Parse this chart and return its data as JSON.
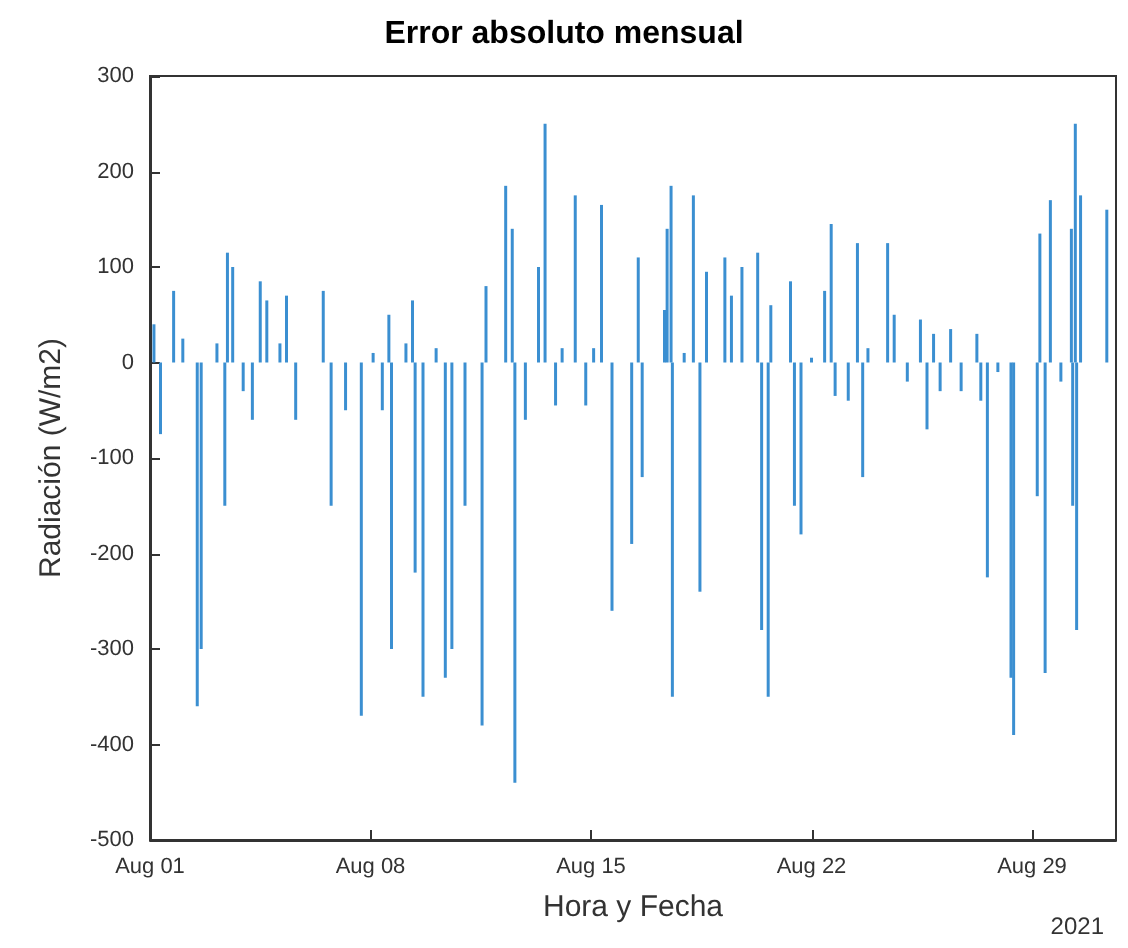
{
  "chart_data": {
    "type": "bar",
    "title": "Error absoluto mensual",
    "xlabel": "Hora y Fecha",
    "ylabel": "Radiación (W/m2)",
    "annotations": [
      "2021"
    ],
    "color": "#3b8fd1",
    "x": [
      "2021-08-01T03:00",
      "2021-08-01T08:00",
      "2021-08-01T18:00",
      "2021-08-02T01:00",
      "2021-08-02T12:00",
      "2021-08-02T15:00",
      "2021-08-03T03:00",
      "2021-08-03T09:00",
      "2021-08-03T11:00",
      "2021-08-03T15:00",
      "2021-08-03T23:00",
      "2021-08-04T06:00",
      "2021-08-04T12:00",
      "2021-08-04T17:00",
      "2021-08-05T03:00",
      "2021-08-05T08:00",
      "2021-08-05T15:00",
      "2021-08-06T12:00",
      "2021-08-06T18:00",
      "2021-08-07T05:00",
      "2021-08-07T17:00",
      "2021-08-08T02:00",
      "2021-08-08T09:00",
      "2021-08-08T14:00",
      "2021-08-08T16:00",
      "2021-08-09T03:00",
      "2021-08-09T08:00",
      "2021-08-09T10:00",
      "2021-08-09T16:00",
      "2021-08-10T02:00",
      "2021-08-10T09:00",
      "2021-08-10T14:00",
      "2021-08-11T00:00",
      "2021-08-11T13:00",
      "2021-08-11T16:00",
      "2021-08-12T07:00",
      "2021-08-12T12:00",
      "2021-08-12T14:00",
      "2021-08-12T22:00",
      "2021-08-13T08:00",
      "2021-08-13T13:00",
      "2021-08-13T21:00",
      "2021-08-14T02:00",
      "2021-08-14T12:00",
      "2021-08-14T20:00",
      "2021-08-15T02:00",
      "2021-08-15T08:00",
      "2021-08-15T16:00",
      "2021-08-16T07:00",
      "2021-08-16T12:00",
      "2021-08-16T15:00",
      "2021-08-17T08:00",
      "2021-08-17T10:00",
      "2021-08-17T13:00",
      "2021-08-17T14:00",
      "2021-08-17T23:00",
      "2021-08-18T06:00",
      "2021-08-18T11:00",
      "2021-08-18T16:00",
      "2021-08-19T06:00",
      "2021-08-19T11:00",
      "2021-08-19T19:00",
      "2021-08-20T07:00",
      "2021-08-20T10:00",
      "2021-08-20T15:00",
      "2021-08-20T17:00",
      "2021-08-21T08:00",
      "2021-08-21T11:00",
      "2021-08-21T16:00",
      "2021-08-22T00:00",
      "2021-08-22T10:00",
      "2021-08-22T15:00",
      "2021-08-22T18:00",
      "2021-08-23T04:00",
      "2021-08-23T11:00",
      "2021-08-23T15:00",
      "2021-08-23T19:00",
      "2021-08-24T10:00",
      "2021-08-24T15:00",
      "2021-08-25T01:00",
      "2021-08-25T11:00",
      "2021-08-25T16:00",
      "2021-08-25T21:00",
      "2021-08-26T02:00",
      "2021-08-26T10:00",
      "2021-08-26T18:00",
      "2021-08-27T06:00",
      "2021-08-27T09:00",
      "2021-08-27T14:00",
      "2021-08-27T22:00",
      "2021-08-28T08:00",
      "2021-08-28T10:00",
      "2021-08-29T04:00",
      "2021-08-29T06:00",
      "2021-08-29T10:00",
      "2021-08-29T14:00",
      "2021-08-29T22:00",
      "2021-08-30T06:00",
      "2021-08-30T07:00",
      "2021-08-30T09:00",
      "2021-08-30T10:00",
      "2021-08-30T13:00",
      "2021-08-31T09:00"
    ],
    "values": [
      40,
      -75,
      75,
      25,
      -360,
      -300,
      20,
      -150,
      115,
      100,
      -30,
      -60,
      85,
      65,
      20,
      70,
      -60,
      75,
      -150,
      -50,
      -370,
      10,
      -50,
      50,
      -300,
      20,
      65,
      -220,
      -350,
      15,
      -330,
      -300,
      -150,
      -380,
      80,
      185,
      140,
      -440,
      -60,
      100,
      250,
      -45,
      15,
      175,
      -45,
      15,
      165,
      -260,
      -190,
      110,
      -120,
      55,
      140,
      185,
      -350,
      10,
      175,
      -240,
      95,
      110,
      70,
      100,
      115,
      -280,
      -350,
      60,
      85,
      -150,
      -180,
      5,
      75,
      145,
      -35,
      -40,
      125,
      -120,
      15,
      125,
      50,
      -20,
      45,
      -70,
      30,
      -30,
      35,
      -30,
      30,
      -40,
      -225,
      -10,
      -330,
      -390,
      -140,
      135,
      -325,
      170,
      -20,
      140,
      -150,
      250,
      -280,
      175,
      160
    ],
    "xlim": [
      "2021-08-01",
      "2021-08-31T16:00"
    ],
    "xticks": [
      {
        "value": "2021-08-01",
        "label": "Aug 01"
      },
      {
        "value": "2021-08-08",
        "label": "Aug 08"
      },
      {
        "value": "2021-08-15",
        "label": "Aug 15"
      },
      {
        "value": "2021-08-22",
        "label": "Aug 22"
      },
      {
        "value": "2021-08-29",
        "label": "Aug 29"
      }
    ],
    "ylim": [
      -500,
      300
    ],
    "yticks": [
      -500,
      -400,
      -300,
      -200,
      -100,
      0,
      100,
      200,
      300
    ]
  }
}
